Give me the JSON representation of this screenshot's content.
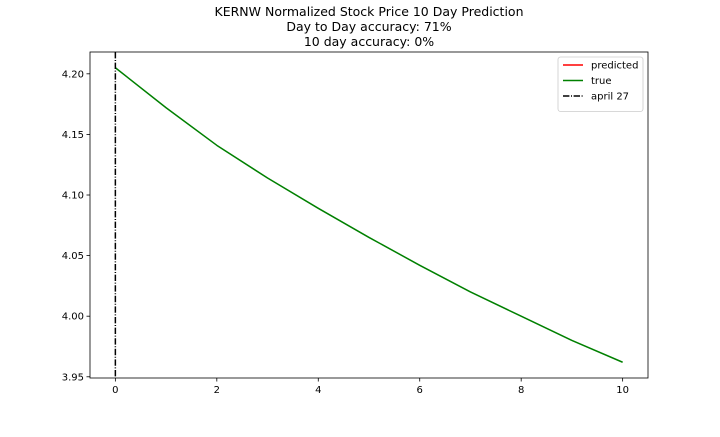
{
  "chart_data": {
    "type": "line",
    "title": [
      "KERNW Normalized Stock Price 10 Day Prediction",
      "Day to Day accuracy: 71%",
      "10 day accuracy: 0%"
    ],
    "xlabel": "",
    "ylabel": "",
    "xlim": [
      -0.5,
      10.5
    ],
    "ylim": [
      3.949,
      4.218
    ],
    "x_ticks": [
      0,
      2,
      4,
      6,
      8,
      10
    ],
    "x_tick_labels": [
      "0",
      "2",
      "4",
      "6",
      "8",
      "10"
    ],
    "y_ticks": [
      3.95,
      4.0,
      4.05,
      4.1,
      4.15,
      4.2
    ],
    "y_tick_labels": [
      "3.95",
      "4.00",
      "4.05",
      "4.10",
      "4.15",
      "4.20"
    ],
    "grid": false,
    "legend_position": "top-right",
    "series": [
      {
        "name": "predicted",
        "color": "#ff0000",
        "style": "solid",
        "x": [],
        "y": []
      },
      {
        "name": "true",
        "color": "#008000",
        "style": "solid",
        "x": [
          0,
          1,
          2,
          3,
          4,
          5,
          6,
          7,
          8,
          9,
          10
        ],
        "y": [
          4.205,
          4.172,
          4.141,
          4.114,
          4.089,
          4.065,
          4.042,
          4.02,
          4.0,
          3.98,
          3.962
        ]
      }
    ],
    "vlines": [
      {
        "name": "april 27",
        "x": 0,
        "color": "#000000",
        "style": "dashdot"
      }
    ]
  }
}
